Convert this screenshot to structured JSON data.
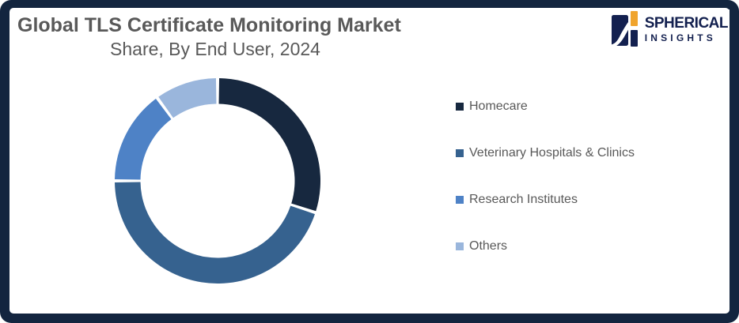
{
  "header": {
    "title_line1": "Global TLS Certificate Monitoring Market",
    "title_line2": "Share, By End User, 2024",
    "title_color": "#595959"
  },
  "logo": {
    "brand_line1": "SPHERICAL",
    "brand_line2": "INSIGHTS",
    "navy": "#13204F",
    "orange": "#F0A42D"
  },
  "frame": {
    "border_color": "#13253F",
    "background_color": "#FFFFFF"
  },
  "chart_data": {
    "type": "pie",
    "subtype": "donut",
    "title": "Global TLS Certificate Monitoring Market Share, By End User, 2024",
    "categories": [
      "Homecare",
      "Veterinary Hospitals & Clinics",
      "Research Institutes",
      "Others"
    ],
    "values": [
      30,
      45,
      15,
      10
    ],
    "unit": "percent-share-estimated-from-arc-angles",
    "colors": [
      "#17283F",
      "#36628F",
      "#4E82C6",
      "#9AB6DC"
    ],
    "donut_hole_ratio": 0.75,
    "start_angle_deg": 0,
    "direction": "clockwise",
    "segment_gap_deg": 1.8,
    "legend_position": "right",
    "data_labels": false
  }
}
